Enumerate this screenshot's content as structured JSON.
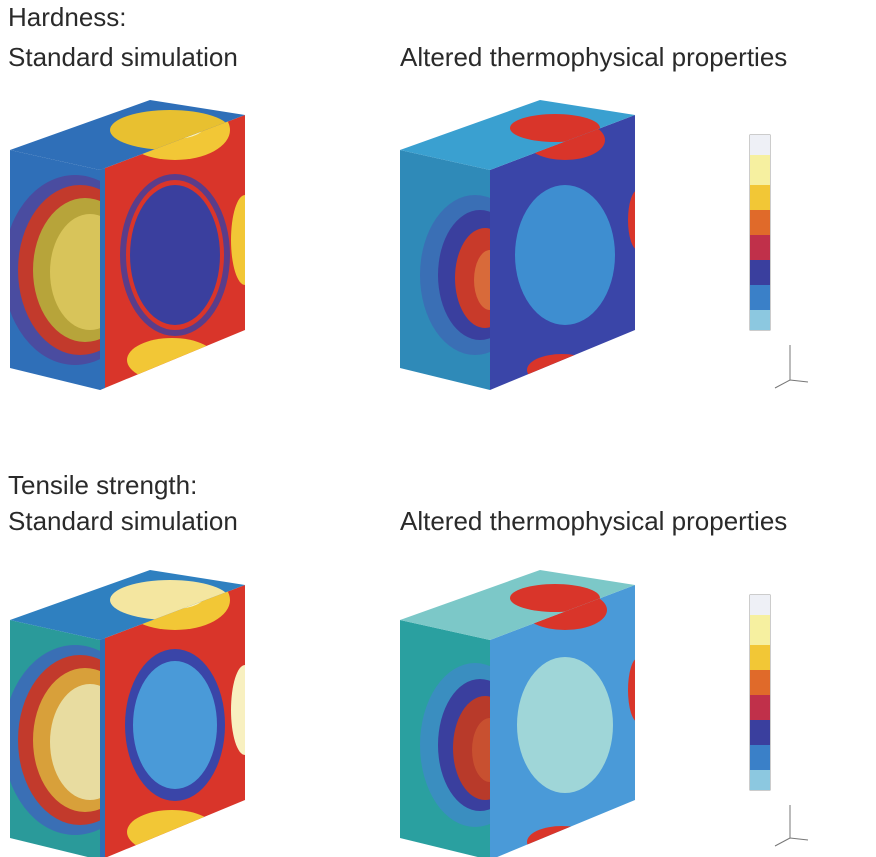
{
  "panels": [
    {
      "heading": "Hardness:",
      "left_caption": "Standard simulation",
      "right_caption": "Altered thermophysical properties"
    },
    {
      "heading": "Tensile strength:",
      "left_caption": "Standard simulation",
      "right_caption": "Altered thermophysical properties"
    }
  ]
}
